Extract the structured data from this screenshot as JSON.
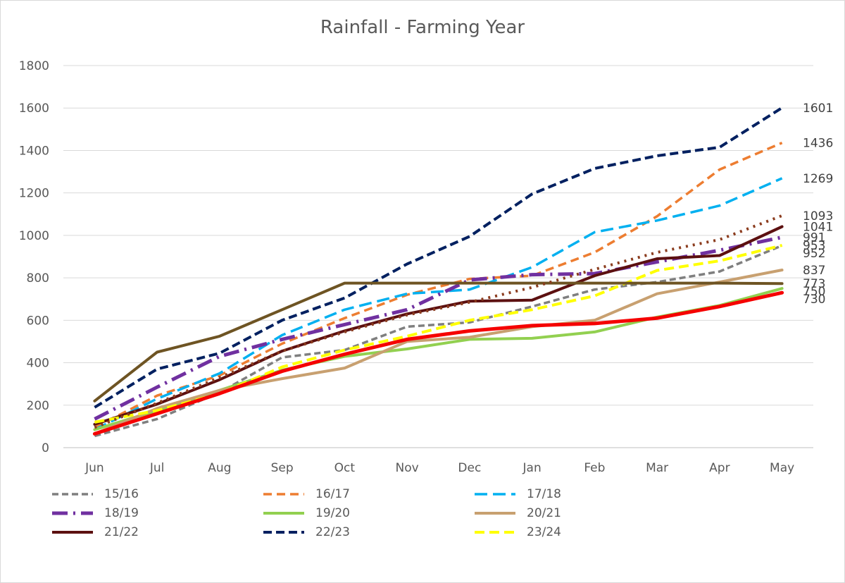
{
  "chart_data": {
    "type": "line",
    "title": "Rainfall - Farming Year",
    "xlabel": "",
    "ylabel": "",
    "categories": [
      "Jun",
      "Jul",
      "Aug",
      "Sep",
      "Oct",
      "Nov",
      "Dec",
      "Jan",
      "Feb",
      "Mar",
      "Apr",
      "May"
    ],
    "ylim": [
      0,
      1800
    ],
    "yticks": [
      0,
      200,
      400,
      600,
      800,
      1000,
      1200,
      1400,
      1600,
      1800
    ],
    "grid": true,
    "legend_position": "bottom",
    "series": [
      {
        "name": "15/16",
        "color": "#7f7f7f",
        "dash": "9,5",
        "width": 3.5,
        "values": [
          55,
          135,
          260,
          425,
          460,
          570,
          590,
          665,
          745,
          780,
          830,
          952
        ],
        "end_label": "952"
      },
      {
        "name": "16/17",
        "color": "#ed7d31",
        "dash": "12,7",
        "width": 3.5,
        "values": [
          95,
          245,
          340,
          490,
          610,
          720,
          795,
          810,
          920,
          1090,
          1310,
          1436
        ],
        "end_label": "1436"
      },
      {
        "name": "17/18",
        "color": "#00b0f0",
        "dash": "18,8",
        "width": 3.5,
        "values": [
          85,
          230,
          350,
          530,
          650,
          725,
          745,
          850,
          1015,
          1070,
          1140,
          1269
        ],
        "end_label": "1269"
      },
      {
        "name": "18/19",
        "color": "#7030a0",
        "dash": "22,8,3,8",
        "width": 5,
        "values": [
          135,
          285,
          430,
          510,
          580,
          650,
          790,
          815,
          820,
          875,
          930,
          991
        ],
        "end_label": "991"
      },
      {
        "name": "19/20",
        "color": "#92d050",
        "dash": "",
        "width": 4,
        "values": [
          85,
          175,
          270,
          365,
          430,
          465,
          510,
          515,
          545,
          615,
          670,
          750
        ],
        "end_label": "750"
      },
      {
        "name": "20/21",
        "color": "#c8a070",
        "dash": "",
        "width": 4,
        "values": [
          65,
          185,
          270,
          325,
          375,
          500,
          520,
          570,
          600,
          725,
          780,
          837
        ],
        "end_label": "837"
      },
      {
        "name": "21/22",
        "color": "#5c1010",
        "dash": "",
        "width": 4,
        "values": [
          110,
          205,
          320,
          455,
          550,
          630,
          690,
          695,
          810,
          890,
          905,
          1041
        ],
        "end_label": "1041"
      },
      {
        "name": "22/23",
        "color": "#002060",
        "dash": "12,6",
        "width": 4,
        "values": [
          190,
          370,
          445,
          600,
          705,
          865,
          995,
          1195,
          1315,
          1375,
          1415,
          1601
        ],
        "end_label": "1601"
      },
      {
        "name": "23/24",
        "color": "#ffff00",
        "dash": "14,7",
        "width": 4,
        "values": [
          120,
          175,
          255,
          380,
          460,
          525,
          600,
          650,
          715,
          835,
          880,
          953
        ],
        "end_label": "953"
      },
      {
        "name": "",
        "color": "#f50000",
        "dash": "",
        "width": 5,
        "values": [
          65,
          160,
          255,
          360,
          440,
          510,
          550,
          575,
          585,
          610,
          665,
          730
        ],
        "end_label": "730"
      },
      {
        "name": "",
        "color": "#6e5423",
        "dash": "",
        "width": 4,
        "values": [
          220,
          450,
          525,
          650,
          775,
          775,
          775,
          775,
          775,
          775,
          775,
          773
        ],
        "end_label": "773"
      },
      {
        "name": "",
        "color": "#8b3c1e",
        "dash": "3,7",
        "width": 4,
        "values": [
          95,
          210,
          330,
          455,
          545,
          625,
          685,
          755,
          840,
          920,
          980,
          1093
        ],
        "end_label": "1093"
      }
    ]
  }
}
